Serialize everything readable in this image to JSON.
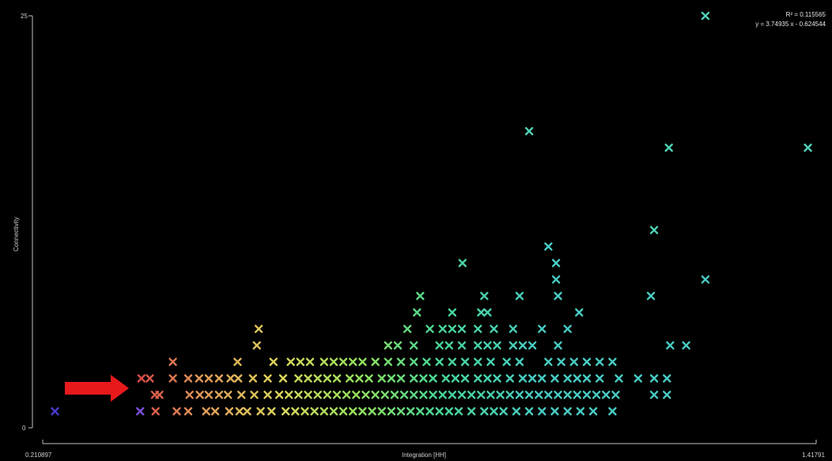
{
  "chart_data": {
    "type": "scatter",
    "xlabel": "Integration [HH]",
    "ylabel": "Connectivity",
    "x_min_label": "0.210897",
    "x_max_label": "1.41791",
    "y_min_label": "0",
    "y_max_label": "25",
    "xlim": [
      0.210897,
      1.41791
    ],
    "ylim": [
      0,
      25
    ],
    "r_squared_text": "R² = 0.115565",
    "regression_text": "y = 3.74935 x - 0.624544",
    "marker": "x",
    "colors": {
      "background": "#000000",
      "axis": "#bfbfbf",
      "highlight_arrow": "#e8191b"
    },
    "points": [
      [
        0.23,
        1
      ],
      [
        0.363,
        1
      ],
      [
        0.387,
        1
      ],
      [
        0.365,
        3
      ],
      [
        0.378,
        3
      ],
      [
        0.393,
        2
      ],
      [
        0.386,
        2
      ],
      [
        0.42,
        1
      ],
      [
        0.438,
        1
      ],
      [
        0.466,
        1
      ],
      [
        0.48,
        1
      ],
      [
        0.502,
        1
      ],
      [
        0.518,
        1
      ],
      [
        0.53,
        1
      ],
      [
        0.551,
        1
      ],
      [
        0.568,
        1
      ],
      [
        0.44,
        2
      ],
      [
        0.456,
        2
      ],
      [
        0.47,
        2
      ],
      [
        0.486,
        2
      ],
      [
        0.5,
        2
      ],
      [
        0.521,
        2
      ],
      [
        0.541,
        2
      ],
      [
        0.562,
        2
      ],
      [
        0.414,
        3
      ],
      [
        0.438,
        3
      ],
      [
        0.455,
        3
      ],
      [
        0.47,
        3
      ],
      [
        0.486,
        3
      ],
      [
        0.504,
        3
      ],
      [
        0.516,
        3
      ],
      [
        0.539,
        3
      ],
      [
        0.562,
        3
      ],
      [
        0.586,
        3
      ],
      [
        0.414,
        4
      ],
      [
        0.515,
        4
      ],
      [
        0.571,
        4
      ],
      [
        0.598,
        4
      ],
      [
        0.613,
        4
      ],
      [
        0.628,
        4
      ],
      [
        0.545,
        5
      ],
      [
        0.548,
        6
      ],
      [
        0.59,
        1
      ],
      [
        0.605,
        1
      ],
      [
        0.62,
        1
      ],
      [
        0.635,
        1
      ],
      [
        0.65,
        1
      ],
      [
        0.665,
        1
      ],
      [
        0.68,
        1
      ],
      [
        0.695,
        1
      ],
      [
        0.71,
        1
      ],
      [
        0.725,
        1
      ],
      [
        0.74,
        1
      ],
      [
        0.755,
        1
      ],
      [
        0.77,
        1
      ],
      [
        0.785,
        1
      ],
      [
        0.8,
        1
      ],
      [
        0.815,
        1
      ],
      [
        0.83,
        1
      ],
      [
        0.845,
        1
      ],
      [
        0.86,
        1
      ],
      [
        0.88,
        1
      ],
      [
        0.9,
        1
      ],
      [
        0.915,
        1
      ],
      [
        0.93,
        1
      ],
      [
        0.95,
        1
      ],
      [
        0.97,
        1
      ],
      [
        0.99,
        1
      ],
      [
        1.01,
        1
      ],
      [
        1.03,
        1
      ],
      [
        1.05,
        1
      ],
      [
        1.07,
        1
      ],
      [
        1.1,
        1
      ],
      [
        0.58,
        2
      ],
      [
        0.595,
        2
      ],
      [
        0.61,
        2
      ],
      [
        0.625,
        2
      ],
      [
        0.64,
        2
      ],
      [
        0.655,
        2
      ],
      [
        0.67,
        2
      ],
      [
        0.685,
        2
      ],
      [
        0.7,
        2
      ],
      [
        0.715,
        2
      ],
      [
        0.73,
        2
      ],
      [
        0.745,
        2
      ],
      [
        0.76,
        2
      ],
      [
        0.775,
        2
      ],
      [
        0.79,
        2
      ],
      [
        0.805,
        2
      ],
      [
        0.82,
        2
      ],
      [
        0.835,
        2
      ],
      [
        0.85,
        2
      ],
      [
        0.865,
        2
      ],
      [
        0.88,
        2
      ],
      [
        0.895,
        2
      ],
      [
        0.91,
        2
      ],
      [
        0.925,
        2
      ],
      [
        0.94,
        2
      ],
      [
        0.955,
        2
      ],
      [
        0.97,
        2
      ],
      [
        0.985,
        2
      ],
      [
        1.0,
        2
      ],
      [
        1.015,
        2
      ],
      [
        1.03,
        2
      ],
      [
        1.045,
        2
      ],
      [
        1.06,
        2
      ],
      [
        1.075,
        2
      ],
      [
        1.09,
        2
      ],
      [
        1.105,
        2
      ],
      [
        1.165,
        2
      ],
      [
        1.185,
        2
      ],
      [
        0.61,
        3
      ],
      [
        0.625,
        3
      ],
      [
        0.64,
        3
      ],
      [
        0.655,
        3
      ],
      [
        0.67,
        3
      ],
      [
        0.69,
        3
      ],
      [
        0.705,
        3
      ],
      [
        0.72,
        3
      ],
      [
        0.74,
        3
      ],
      [
        0.755,
        3
      ],
      [
        0.77,
        3
      ],
      [
        0.79,
        3
      ],
      [
        0.805,
        3
      ],
      [
        0.82,
        3
      ],
      [
        0.84,
        3
      ],
      [
        0.855,
        3
      ],
      [
        0.87,
        3
      ],
      [
        0.89,
        3
      ],
      [
        0.905,
        3
      ],
      [
        0.92,
        3
      ],
      [
        0.94,
        3
      ],
      [
        0.96,
        3
      ],
      [
        0.975,
        3
      ],
      [
        0.99,
        3
      ],
      [
        1.01,
        3
      ],
      [
        1.03,
        3
      ],
      [
        1.045,
        3
      ],
      [
        1.06,
        3
      ],
      [
        1.08,
        3
      ],
      [
        1.11,
        3
      ],
      [
        1.14,
        3
      ],
      [
        1.165,
        3
      ],
      [
        1.185,
        3
      ],
      [
        0.65,
        4
      ],
      [
        0.665,
        4
      ],
      [
        0.68,
        4
      ],
      [
        0.695,
        4
      ],
      [
        0.71,
        4
      ],
      [
        0.73,
        4
      ],
      [
        0.75,
        4
      ],
      [
        0.77,
        4
      ],
      [
        0.79,
        4
      ],
      [
        0.81,
        4
      ],
      [
        0.83,
        4
      ],
      [
        0.85,
        4
      ],
      [
        0.87,
        4
      ],
      [
        0.89,
        4
      ],
      [
        0.91,
        4
      ],
      [
        0.935,
        4
      ],
      [
        0.955,
        4
      ],
      [
        1.0,
        4
      ],
      [
        1.02,
        4
      ],
      [
        1.04,
        4
      ],
      [
        1.06,
        4
      ],
      [
        1.08,
        4
      ],
      [
        1.1,
        4
      ],
      [
        0.75,
        5
      ],
      [
        0.765,
        5
      ],
      [
        0.79,
        5
      ],
      [
        0.83,
        5
      ],
      [
        0.845,
        5
      ],
      [
        0.865,
        5
      ],
      [
        0.89,
        5
      ],
      [
        0.905,
        5
      ],
      [
        0.92,
        5
      ],
      [
        0.945,
        5
      ],
      [
        0.96,
        5
      ],
      [
        0.975,
        5
      ],
      [
        1.015,
        5
      ],
      [
        1.19,
        5
      ],
      [
        1.215,
        5
      ],
      [
        0.78,
        6
      ],
      [
        0.815,
        6
      ],
      [
        0.835,
        6
      ],
      [
        0.85,
        6
      ],
      [
        0.865,
        6
      ],
      [
        0.89,
        6
      ],
      [
        0.915,
        6
      ],
      [
        0.945,
        6
      ],
      [
        0.99,
        6
      ],
      [
        1.03,
        6
      ],
      [
        0.795,
        7
      ],
      [
        0.85,
        7
      ],
      [
        0.895,
        7
      ],
      [
        0.905,
        7
      ],
      [
        1.048,
        7
      ],
      [
        0.8,
        8
      ],
      [
        0.9,
        8
      ],
      [
        0.955,
        8
      ],
      [
        1.015,
        8
      ],
      [
        1.16,
        8
      ],
      [
        1.012,
        9
      ],
      [
        1.245,
        9
      ],
      [
        0.866,
        10
      ],
      [
        1.012,
        10
      ],
      [
        1.0,
        11
      ],
      [
        1.165,
        12
      ],
      [
        0.97,
        18
      ],
      [
        1.188,
        17
      ],
      [
        1.405,
        17
      ],
      [
        1.245,
        25
      ]
    ]
  }
}
